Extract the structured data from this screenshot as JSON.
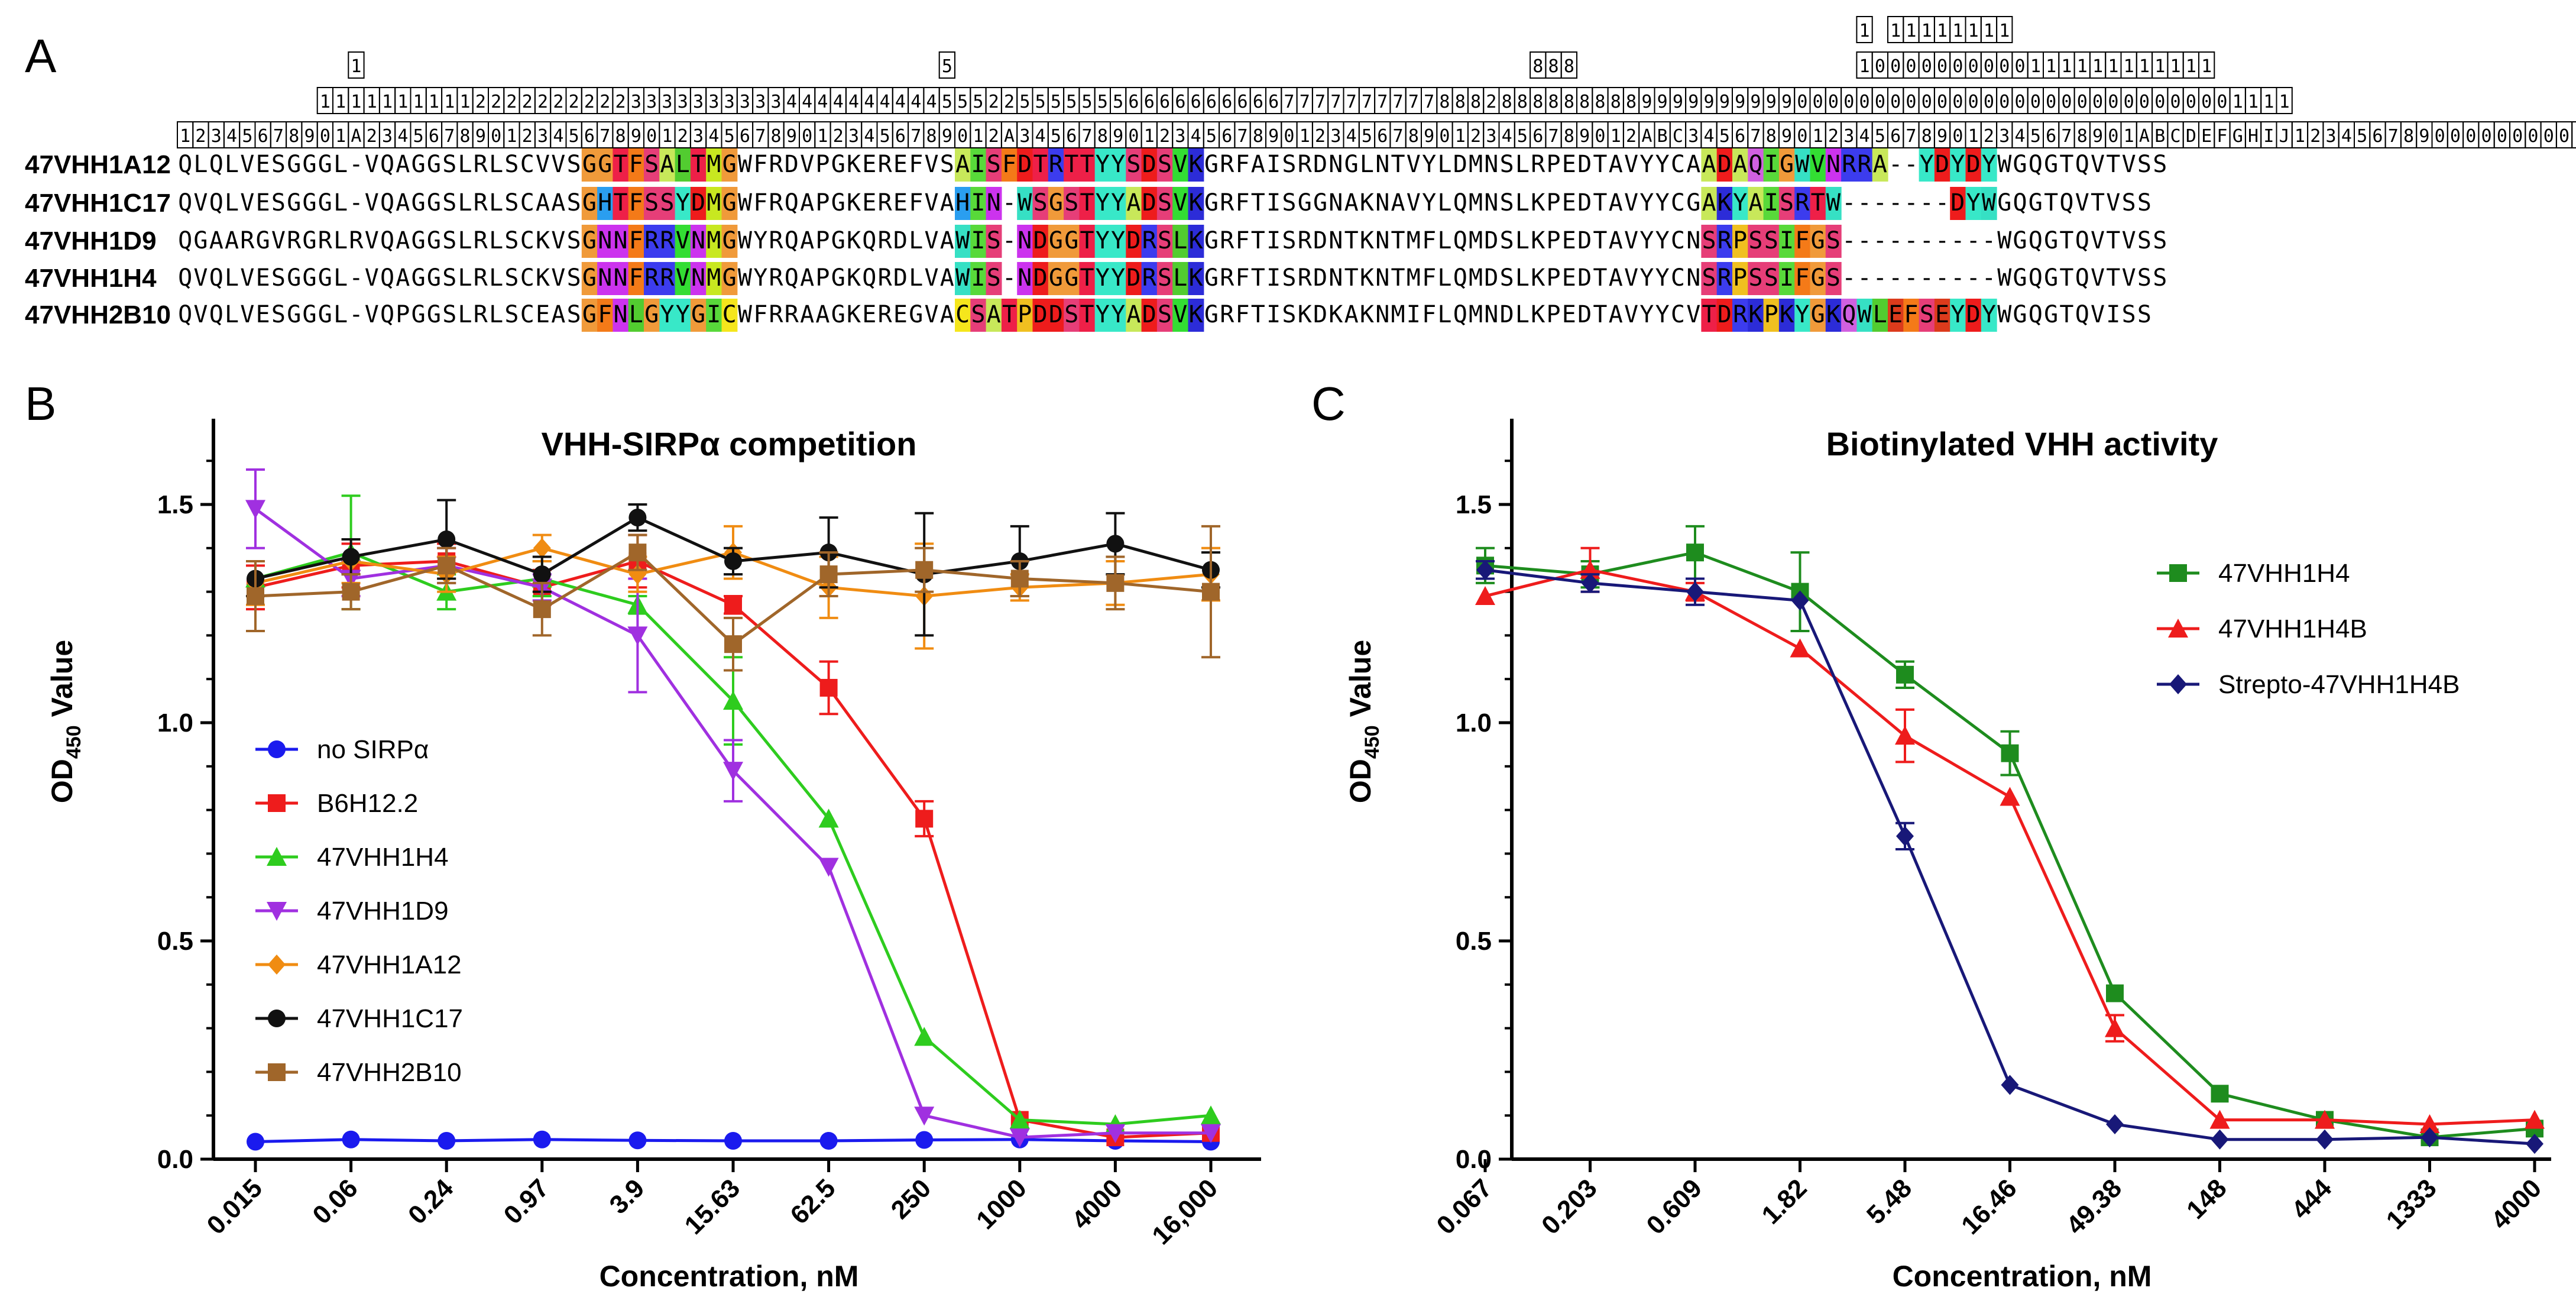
{
  "panel_labels": {
    "a": "A",
    "b": "B",
    "c": "C"
  },
  "alignment": {
    "numbering": {
      "row1": [
        {
          "col": 108,
          "text": "1"
        },
        {
          "col": 110,
          "text": "1"
        },
        {
          "col": 111,
          "text": "1"
        },
        {
          "col": 112,
          "text": "1"
        },
        {
          "col": 113,
          "text": "1"
        },
        {
          "col": 114,
          "text": "1"
        },
        {
          "col": 115,
          "text": "1"
        },
        {
          "col": 116,
          "text": "1"
        },
        {
          "col": 117,
          "text": "1"
        }
      ],
      "row2": [
        {
          "col": 11,
          "text": "1"
        },
        {
          "col": 49,
          "text": "5"
        },
        {
          "col": 87,
          "text": "8"
        },
        {
          "col": 88,
          "text": "8"
        },
        {
          "col": 89,
          "text": "8"
        },
        {
          "col": 108,
          "text": "1"
        },
        {
          "col": 109,
          "text": "0"
        },
        {
          "col": 110,
          "text": "0"
        },
        {
          "col": 111,
          "text": "0"
        },
        {
          "col": 112,
          "text": "0"
        },
        {
          "col": 113,
          "text": "0"
        },
        {
          "col": 114,
          "text": "0"
        },
        {
          "col": 115,
          "text": "0"
        },
        {
          "col": 116,
          "text": "0"
        },
        {
          "col": 117,
          "text": "0"
        },
        {
          "col": 118,
          "text": "0"
        },
        {
          "col": 119,
          "text": "1"
        },
        {
          "col": 120,
          "text": "1"
        },
        {
          "col": 121,
          "text": "1"
        },
        {
          "col": 122,
          "text": "1"
        },
        {
          "col": 123,
          "text": "1"
        },
        {
          "col": 124,
          "text": "1"
        },
        {
          "col": 125,
          "text": "1"
        },
        {
          "col": 126,
          "text": "1"
        },
        {
          "col": 127,
          "text": "1"
        },
        {
          "col": 128,
          "text": "1"
        },
        {
          "col": 129,
          "text": "1"
        },
        {
          "col": 130,
          "text": "1"
        }
      ],
      "row3_start": 9,
      "row3": "1111111111222222222233333333334444444444555225555555666666666677777777778882888888888999999999900000000000000000000000000001111",
      "row4": "12345678901A23456789012345678901234567890123456789012A3456789012345678901234567890123456789012ABC34567890123456789012345678901ABCDEFGHIJ123456789000000000111"
    },
    "rows": [
      {
        "name": "47VHH1A12",
        "seq": "QLQLVESGGGL-VQAGGSLRLSCVVSGGTFSALTMGWFRDVPGKEREFVSAISFDTRTTYYSDSVKGRFAISRDNGLNTVYLDMNSLRPEDTAVYYCAADAQIGWVNRRA--YDYDYWGQGTQVTVSS"
      },
      {
        "name": "47VHH1C17",
        "seq": "QVQLVESGGGL-VQAGGSLRLSCAASGHTFSSYDMGWFRQAPGKEREFVAHIN-WSGSTYYADSVKGRFTISGGNAKNAVYLQMNSLKPEDTAVYYCGAKYAISRTW-------DYWGQGTQVTVSS"
      },
      {
        "name": "47VHH1D9",
        "seq": "QGAARGVRGRLRVQAGGSLRLSCKVSGNNFRRVNMGWYRQAPGKQRDLVAWIS-NDGGTYYDRSLKGRFTISRDNTKNTMFLQMDSLKPEDTAVYYCNSRPSSIFGS----------WGQGTQVTVSS"
      },
      {
        "name": "47VHH1H4",
        "seq": "QVQLVESGGGL-VQAGGSLRLSCKVSGNNFRRVNMGWYRQAPGKQRDLVAWIS-NDGGTYYDRSLKGRFTISRDNTKNTMFLQMDSLKPEDTAVYYCNSRPSSIFGS----------WGQGTQVTVSS"
      },
      {
        "name": "47VHH2B10",
        "seq": "QVQLVESGGGL-VQPGGSLRLSCEASGFNLGYYGICWFRRAAGKEREGVACSATPDDSTYYADSVKGRFTISKDKAKNMIFLQMNDLKPEDTAVYYCVTDRKPKYGKQWLEFSEYDYWGQGTQVISS"
      }
    ],
    "cdr_regions": [
      [
        26,
        35
      ],
      [
        50,
        65
      ],
      [
        98,
        116
      ]
    ],
    "residue_colors": {
      "A": "#c8e85a",
      "C": "#f5e61c",
      "D": "#ee1c1c",
      "E": "#dc3b1c",
      "F": "#f47a18",
      "G": "#f09a3a",
      "H": "#2a9ef0",
      "I": "#58d93a",
      "K": "#2c2cd8",
      "L": "#52cc30",
      "M": "#c8e820",
      "N": "#cc33ee",
      "P": "#f0c020",
      "Q": "#d060e0",
      "R": "#3c3cee",
      "S": "#e63e78",
      "T": "#ee2048",
      "V": "#33dd33",
      "W": "#36e0c4",
      "Y": "#38e8c8"
    }
  },
  "chart_b": {
    "title": "VHH-SIRPα competition",
    "xlabel": "Concentration, nM",
    "ylabel_main": "OD",
    "ylabel_sub": "450",
    "ylabel_tail": " Value",
    "chart_data": {
      "type": "line",
      "title": "VHH-SIRPα competition",
      "xlabel": "Concentration, nM",
      "ylabel": "OD450 Value",
      "categories": [
        "0.015",
        "0.06",
        "0.24",
        "0.97",
        "3.9",
        "15.63",
        "62.5",
        "250",
        "1000",
        "4000",
        "16,000"
      ],
      "ylim": [
        0,
        1.7
      ],
      "yticks": [
        "0.0",
        "0.5",
        "1.0",
        "1.5"
      ],
      "legend_position": "center-left",
      "series": [
        {
          "name": "no SIRPα",
          "color": "#1a1aee",
          "marker": "circle",
          "values": [
            0.04,
            0.045,
            0.042,
            0.045,
            0.043,
            0.042,
            0.042,
            0.044,
            0.045,
            0.042,
            0.04
          ],
          "errors": [
            0,
            0,
            0,
            0,
            0,
            0,
            0,
            0,
            0,
            0,
            0
          ]
        },
        {
          "name": "B6H12.2",
          "color": "#ee1c1c",
          "marker": "square",
          "values": [
            1.31,
            1.36,
            1.37,
            1.31,
            1.37,
            1.27,
            1.08,
            0.78,
            0.09,
            0.05,
            0.06
          ],
          "errors": [
            0.05,
            0.05,
            0.04,
            0.04,
            0.06,
            0.02,
            0.06,
            0.04,
            0.01,
            0.01,
            0.01
          ]
        },
        {
          "name": "47VHH1H4",
          "color": "#2ecc1e",
          "marker": "triangle-up",
          "values": [
            1.33,
            1.39,
            1.3,
            1.33,
            1.27,
            1.05,
            0.78,
            0.28,
            0.09,
            0.08,
            0.1
          ],
          "errors": [
            0.04,
            0.13,
            0.04,
            0.04,
            0.02,
            0.1,
            0.01,
            0.01,
            0.01,
            0.01,
            0.01
          ]
        },
        {
          "name": "47VHH1D9",
          "color": "#a030e0",
          "marker": "triangle-down",
          "values": [
            1.49,
            1.33,
            1.36,
            1.31,
            1.2,
            0.89,
            0.67,
            0.1,
            0.05,
            0.06,
            0.06
          ],
          "errors": [
            0.09,
            0.04,
            0.04,
            0.03,
            0.13,
            0.07,
            0.01,
            0.01,
            0.01,
            0.01,
            0.01
          ]
        },
        {
          "name": "47VHH1A12",
          "color": "#f08c12",
          "marker": "diamond",
          "values": [
            1.32,
            1.37,
            1.34,
            1.4,
            1.34,
            1.39,
            1.31,
            1.29,
            1.31,
            1.32,
            1.34
          ],
          "errors": [
            0.05,
            0.05,
            0.04,
            0.03,
            0.04,
            0.06,
            0.07,
            0.12,
            0.03,
            0.05,
            0.06
          ]
        },
        {
          "name": "47VHH1C17",
          "color": "#111111",
          "marker": "circle",
          "values": [
            1.33,
            1.38,
            1.42,
            1.34,
            1.47,
            1.37,
            1.39,
            1.34,
            1.37,
            1.41,
            1.35
          ],
          "errors": [
            0.04,
            0.04,
            0.09,
            0.04,
            0.03,
            0.03,
            0.08,
            0.14,
            0.08,
            0.07,
            0.04
          ]
        },
        {
          "name": "47VHH2B10",
          "color": "#a0662a",
          "marker": "square",
          "values": [
            1.29,
            1.3,
            1.36,
            1.26,
            1.39,
            1.18,
            1.34,
            1.35,
            1.33,
            1.32,
            1.3
          ],
          "errors": [
            0.08,
            0.04,
            0.04,
            0.06,
            0.04,
            0.06,
            0.05,
            0.05,
            0.04,
            0.06,
            0.15
          ]
        }
      ]
    }
  },
  "chart_c": {
    "title": "Biotinylated VHH activity",
    "xlabel": "Concentration, nM",
    "ylabel_main": "OD",
    "ylabel_sub": "450",
    "ylabel_tail": " Value",
    "chart_data": {
      "type": "line",
      "title": "Biotinylated VHH activity",
      "xlabel": "Concentration, nM",
      "ylabel": "OD450 Value",
      "categories": [
        "0.067",
        "0.203",
        "0.609",
        "1.82",
        "5.48",
        "16.46",
        "49.38",
        "148",
        "444",
        "1333",
        "4000"
      ],
      "ylim": [
        0,
        1.7
      ],
      "yticks": [
        "0.0",
        "0.5",
        "1.0",
        "1.5"
      ],
      "legend_position": "top-right",
      "series": [
        {
          "name": "47VHH1H4",
          "color": "#1e8c1e",
          "marker": "square",
          "values": [
            1.36,
            1.34,
            1.39,
            1.3,
            1.11,
            0.93,
            0.38,
            0.15,
            0.09,
            0.05,
            0.07
          ],
          "errors": [
            0.04,
            0.03,
            0.06,
            0.09,
            0.03,
            0.05,
            0.01,
            0.01,
            0.01,
            0.01,
            0.01
          ]
        },
        {
          "name": "47VHH1H4B",
          "color": "#ee1c1c",
          "marker": "triangle-up",
          "values": [
            1.29,
            1.35,
            1.3,
            1.17,
            0.97,
            0.83,
            0.3,
            0.09,
            0.09,
            0.08,
            0.09
          ],
          "errors": [
            0.01,
            0.05,
            0.02,
            0.01,
            0.06,
            0.01,
            0.03,
            0.01,
            0.01,
            0.01,
            0.01
          ]
        },
        {
          "name": "Strepto-47VHH1H4B",
          "color": "#181878",
          "marker": "diamond",
          "values": [
            1.35,
            1.32,
            1.3,
            1.28,
            0.74,
            0.17,
            0.08,
            0.045,
            0.045,
            0.05,
            0.035
          ],
          "errors": [
            0.02,
            0.02,
            0.03,
            0.01,
            0.03,
            0.01,
            0.005,
            0.005,
            0.005,
            0.005,
            0.005
          ]
        }
      ]
    }
  }
}
